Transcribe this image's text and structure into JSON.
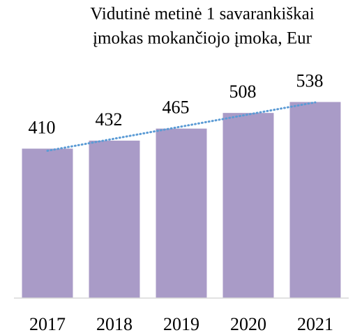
{
  "chart_data": {
    "type": "bar",
    "title": [
      "Vidutinė metinė 1 savarankiškai",
      "įmokas mokančiojo įmoka, Eur"
    ],
    "categories": [
      "2017",
      "2018",
      "2019",
      "2020",
      "2021"
    ],
    "values": [
      410,
      432,
      465,
      508,
      538
    ],
    "color": "#a99bc7",
    "ylim": [
      0,
      600
    ],
    "trendline": true,
    "trendline_color": "#5b9bd5"
  }
}
